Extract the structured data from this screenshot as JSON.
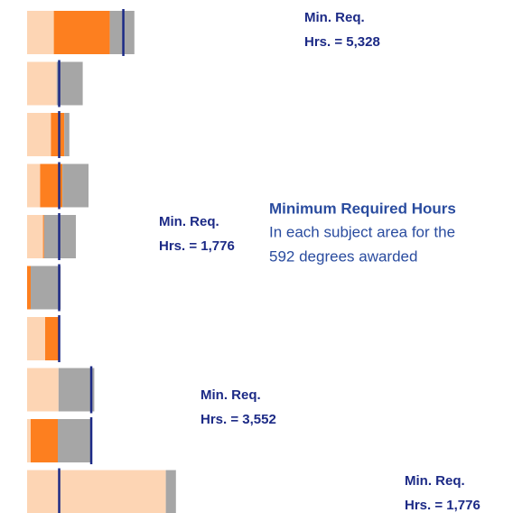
{
  "chart_data": {
    "type": "stacked_barh",
    "xlim": [
      0,
      26900
    ],
    "series": [
      {
        "color": "#fdd5b4",
        "values": [
          1480,
          1640,
          1320,
          720,
          880,
          0,
          1000,
          1740,
          200,
          7680
        ]
      },
      {
        "color": "#fd7f1f",
        "values": [
          3100,
          0,
          740,
          1240,
          60,
          200,
          760,
          0,
          1500,
          0
        ]
      },
      {
        "color": "#a6a6a6",
        "values": [
          1360,
          1440,
          280,
          1440,
          1760,
          1660,
          60,
          1980,
          1900,
          560
        ]
      }
    ],
    "min_required": {
      "color": "#1c2a86",
      "values": [
        5328,
        1776,
        1776,
        1776,
        1776,
        1776,
        1776,
        3552,
        3552,
        1776
      ]
    },
    "annotations": [
      {
        "lines": [
          "Min. Req.",
          "Hrs. = 5,328"
        ]
      },
      {
        "lines": [
          "Min. Req.",
          "Hrs. = 1,776"
        ]
      },
      {
        "lines": [
          "Min. Req.",
          "Hrs. = 3,552"
        ]
      },
      {
        "lines": [
          "Min. Req.",
          "Hrs. = 1,776"
        ]
      }
    ],
    "note": {
      "title": "Minimum Required Hours",
      "lines": [
        "In each subject area for the",
        "592 degrees awarded"
      ]
    }
  }
}
